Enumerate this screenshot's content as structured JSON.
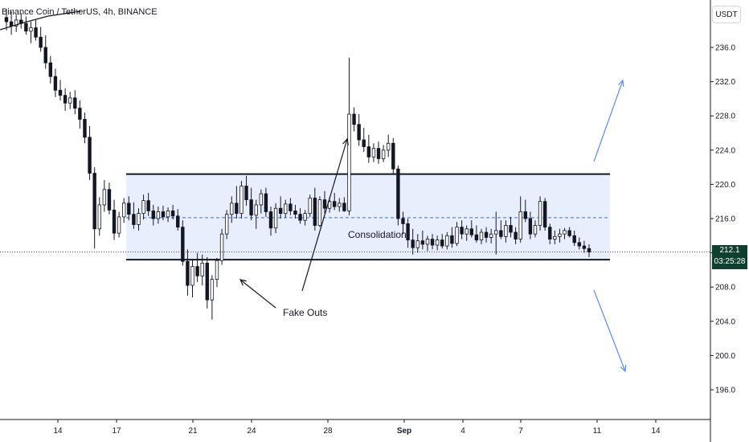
{
  "header": {
    "symbol": "Binance Coin / TetherUS, 4h, BINANCE"
  },
  "currency_label": "USDT",
  "last_price": {
    "price": "212.1",
    "countdown": "03:25:28"
  },
  "colors": {
    "candle": "#131722",
    "zone_fill": "#e8eefb",
    "zone_line": "#131722",
    "mid_line": "#3a6fd8",
    "arrow_blue": "#5b8def",
    "price_tag_bg": "#0f3f2e"
  },
  "chart_data": {
    "type": "candlestick",
    "y_range": [
      192,
      240
    ],
    "y_ticks": [
      "236.0",
      "232.0",
      "228.0",
      "224.0",
      "220.0",
      "216.0",
      "212.0",
      "208.0",
      "204.0",
      "200.0",
      "196.0"
    ],
    "x_ticks": [
      "14",
      "17",
      "21",
      "24",
      "28",
      "Sep",
      "4",
      "7",
      "11",
      "14"
    ],
    "consolidation_zone": {
      "top": 221.2,
      "bottom": 211.2,
      "mid": 216.1
    },
    "annotations": [
      "Consolidation",
      "Fake Outs"
    ],
    "ohlc": [
      [
        239.5,
        240.5,
        238.0,
        239.0
      ],
      [
        239.0,
        240.2,
        237.5,
        238.5
      ],
      [
        238.5,
        239.8,
        237.8,
        239.2
      ],
      [
        239.2,
        240.0,
        238.2,
        238.8
      ],
      [
        238.8,
        239.6,
        237.5,
        237.9
      ],
      [
        237.9,
        239.0,
        236.5,
        238.3
      ],
      [
        238.3,
        239.2,
        236.8,
        237.2
      ],
      [
        237.2,
        238.4,
        235.5,
        236.0
      ],
      [
        236.0,
        237.4,
        233.5,
        234.2
      ],
      [
        234.2,
        235.0,
        231.8,
        232.6
      ],
      [
        232.6,
        233.5,
        230.2,
        231.0
      ],
      [
        231.0,
        232.2,
        229.8,
        230.4
      ],
      [
        230.4,
        231.2,
        228.6,
        229.5
      ],
      [
        229.5,
        230.8,
        228.8,
        230.1
      ],
      [
        230.1,
        231.0,
        228.2,
        228.9
      ],
      [
        228.9,
        229.8,
        226.5,
        227.6
      ],
      [
        227.6,
        228.4,
        224.8,
        225.5
      ],
      [
        225.5,
        226.8,
        220.5,
        221.3
      ],
      [
        221.3,
        222.0,
        212.5,
        214.8
      ],
      [
        214.8,
        218.5,
        214.0,
        217.6
      ],
      [
        217.6,
        220.5,
        216.8,
        219.4
      ],
      [
        219.4,
        220.2,
        216.5,
        217.0
      ],
      [
        217.0,
        218.2,
        213.5,
        214.3
      ],
      [
        214.3,
        216.8,
        213.8,
        216.2
      ],
      [
        216.2,
        218.4,
        215.5,
        217.8
      ],
      [
        217.8,
        218.6,
        215.8,
        216.5
      ],
      [
        216.5,
        217.9,
        214.8,
        215.3
      ],
      [
        215.3,
        217.2,
        214.6,
        216.6
      ],
      [
        216.6,
        218.8,
        215.9,
        218.1
      ],
      [
        218.1,
        219.0,
        216.3,
        216.9
      ],
      [
        216.9,
        217.6,
        215.2,
        216.0
      ],
      [
        216.0,
        217.4,
        215.4,
        216.8
      ],
      [
        216.8,
        217.5,
        215.8,
        216.2
      ],
      [
        216.2,
        217.3,
        215.6,
        216.9
      ],
      [
        216.9,
        217.6,
        215.9,
        216.3
      ],
      [
        216.3,
        217.1,
        214.6,
        215.0
      ],
      [
        215.0,
        215.8,
        210.5,
        211.0
      ],
      [
        211.0,
        212.4,
        207.0,
        208.2
      ],
      [
        208.2,
        211.2,
        206.8,
        210.4
      ],
      [
        210.4,
        212.0,
        208.6,
        209.3
      ],
      [
        209.3,
        211.8,
        208.2,
        210.8
      ],
      [
        210.8,
        211.5,
        205.5,
        206.5
      ],
      [
        206.5,
        209.4,
        204.2,
        208.9
      ],
      [
        208.9,
        211.4,
        208.0,
        211.1
      ],
      [
        211.1,
        214.8,
        210.6,
        214.2
      ],
      [
        214.2,
        217.0,
        213.6,
        216.5
      ],
      [
        216.5,
        218.6,
        215.5,
        217.8
      ],
      [
        217.8,
        219.8,
        216.0,
        216.6
      ],
      [
        216.6,
        220.4,
        216.0,
        219.8
      ],
      [
        219.8,
        221.0,
        217.5,
        218.2
      ],
      [
        218.2,
        219.6,
        215.8,
        216.4
      ],
      [
        216.4,
        218.2,
        214.8,
        217.6
      ],
      [
        217.6,
        219.4,
        216.6,
        218.9
      ],
      [
        218.9,
        219.6,
        216.2,
        216.8
      ],
      [
        216.8,
        217.4,
        214.0,
        214.9
      ],
      [
        214.9,
        217.8,
        214.3,
        217.2
      ],
      [
        217.2,
        218.6,
        216.0,
        216.6
      ],
      [
        216.6,
        218.2,
        216.1,
        217.7
      ],
      [
        217.7,
        218.4,
        216.4,
        216.9
      ],
      [
        216.9,
        217.6,
        216.0,
        216.5
      ],
      [
        216.5,
        217.2,
        215.4,
        215.8
      ],
      [
        215.8,
        217.0,
        215.2,
        216.6
      ],
      [
        216.6,
        218.8,
        216.2,
        218.4
      ],
      [
        218.4,
        219.6,
        214.6,
        215.2
      ],
      [
        215.2,
        218.6,
        215.0,
        218.2
      ],
      [
        218.2,
        219.2,
        216.6,
        217.2
      ],
      [
        217.2,
        218.5,
        216.7,
        218.0
      ],
      [
        218.0,
        219.0,
        217.0,
        217.4
      ],
      [
        217.4,
        218.4,
        216.8,
        217.8
      ],
      [
        217.8,
        218.5,
        216.8,
        216.9
      ],
      [
        216.9,
        234.8,
        216.4,
        228.2
      ],
      [
        228.2,
        229.0,
        226.2,
        227.0
      ],
      [
        227.0,
        228.2,
        224.5,
        225.2
      ],
      [
        225.2,
        226.6,
        223.8,
        224.4
      ],
      [
        224.4,
        225.8,
        222.5,
        223.2
      ],
      [
        223.2,
        224.8,
        222.6,
        224.2
      ],
      [
        224.2,
        225.0,
        222.4,
        223.0
      ],
      [
        223.0,
        224.6,
        222.6,
        224.0
      ],
      [
        224.0,
        225.8,
        223.2,
        224.8
      ],
      [
        224.8,
        225.4,
        221.2,
        221.8
      ],
      [
        221.8,
        222.2,
        215.2,
        216.0
      ],
      [
        216.0,
        216.8,
        214.2,
        215.4
      ],
      [
        215.4,
        216.0,
        212.6,
        213.5
      ],
      [
        213.5,
        214.8,
        211.8,
        212.6
      ],
      [
        212.6,
        214.2,
        212.0,
        213.4
      ],
      [
        213.4,
        214.6,
        212.4,
        213.0
      ],
      [
        213.0,
        214.0,
        212.2,
        213.6
      ],
      [
        213.6,
        214.2,
        212.4,
        212.9
      ],
      [
        212.9,
        214.0,
        212.3,
        213.5
      ],
      [
        213.5,
        214.2,
        212.5,
        212.8
      ],
      [
        212.8,
        214.4,
        212.4,
        214.0
      ],
      [
        214.0,
        215.0,
        212.6,
        213.1
      ],
      [
        213.1,
        215.6,
        212.8,
        215.0
      ],
      [
        215.0,
        215.8,
        213.6,
        214.2
      ],
      [
        214.2,
        215.2,
        213.4,
        214.8
      ],
      [
        214.8,
        215.8,
        213.8,
        214.1
      ],
      [
        214.1,
        215.2,
        213.2,
        213.5
      ],
      [
        213.5,
        214.8,
        213.0,
        214.4
      ],
      [
        214.4,
        215.0,
        213.2,
        213.8
      ],
      [
        213.8,
        214.8,
        213.1,
        214.2
      ],
      [
        214.2,
        216.8,
        211.8,
        214.6
      ],
      [
        214.6,
        215.8,
        213.6,
        213.9
      ],
      [
        213.9,
        215.8,
        213.2,
        215.2
      ],
      [
        215.2,
        216.2,
        213.8,
        214.4
      ],
      [
        214.4,
        215.0,
        213.0,
        213.6
      ],
      [
        213.6,
        218.6,
        213.2,
        216.8
      ],
      [
        216.8,
        218.2,
        215.6,
        216.0
      ],
      [
        216.0,
        216.8,
        213.6,
        214.2
      ],
      [
        214.2,
        215.8,
        213.8,
        215.2
      ],
      [
        215.2,
        218.6,
        214.6,
        218.0
      ],
      [
        218.0,
        218.4,
        214.6,
        215.0
      ],
      [
        215.0,
        215.4,
        213.0,
        213.6
      ],
      [
        213.6,
        214.6,
        213.0,
        213.9
      ],
      [
        213.9,
        214.8,
        213.2,
        214.2
      ],
      [
        214.2,
        214.9,
        213.6,
        214.6
      ],
      [
        214.6,
        215.0,
        213.8,
        214.0
      ],
      [
        214.0,
        214.6,
        212.8,
        213.2
      ],
      [
        213.2,
        213.8,
        212.4,
        212.8
      ],
      [
        212.8,
        213.4,
        212.0,
        212.5
      ],
      [
        212.5,
        213.0,
        211.5,
        212.1
      ]
    ]
  }
}
